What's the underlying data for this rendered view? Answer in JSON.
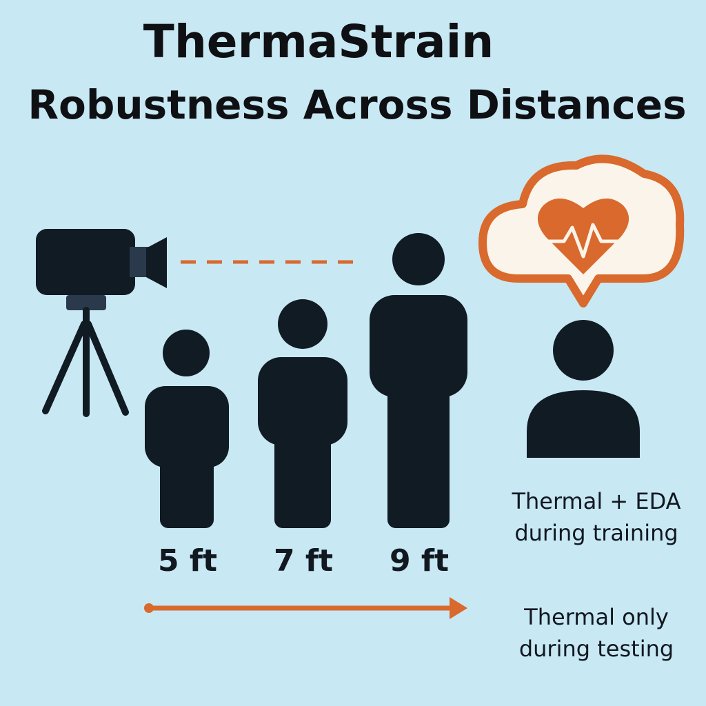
{
  "title": {
    "line1": "ThermaStrain",
    "line2": "Robustness Across Distances"
  },
  "distances": [
    {
      "label": "5 ft"
    },
    {
      "label": "7 ft"
    },
    {
      "label": "9 ft"
    }
  ],
  "captions": {
    "training": "Thermal + EDA during training",
    "testing": "Thermal only during testing"
  },
  "icons": {
    "camera": "camera-icon",
    "tripod": "tripod-icon",
    "cloud": "cloud-icon",
    "heart": "heart-pulse-icon",
    "person": "person-icon",
    "arrow": "arrow-right-icon"
  },
  "colors": {
    "background": "#c8e8f4",
    "figure": "#111b24",
    "accent": "#d9692c",
    "cloud_fill": "#fbf4ea"
  }
}
